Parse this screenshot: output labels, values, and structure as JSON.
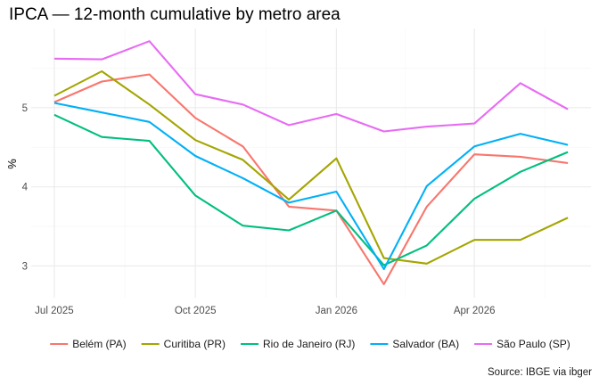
{
  "chart_data": {
    "type": "line",
    "title": "IPCA — 12-month cumulative by metro area",
    "xlabel": "",
    "ylabel": "%",
    "caption": "Source: IBGE via ibger",
    "x": [
      "2025-07-01",
      "2025-08-01",
      "2025-09-01",
      "2025-10-01",
      "2025-11-01",
      "2025-12-01",
      "2026-01-01",
      "2026-02-01",
      "2026-03-01",
      "2026-04-01",
      "2026-05-01",
      "2026-06-01"
    ],
    "x_ticks": [
      {
        "x": "2025-07-01",
        "label": "Jul 2025"
      },
      {
        "x": "2025-10-01",
        "label": "Oct 2025"
      },
      {
        "x": "2026-01-01",
        "label": "Jan 2026"
      },
      {
        "x": "2026-04-01",
        "label": "Apr 2026"
      }
    ],
    "y_ticks": [
      3,
      4,
      5
    ],
    "ylim": [
      2.6,
      6.0
    ],
    "grid": true,
    "legend_position": "bottom",
    "series": [
      {
        "name": "Belém (PA)",
        "color": "#F8766D",
        "values": [
          5.07,
          5.33,
          5.42,
          4.87,
          4.51,
          3.75,
          3.7,
          2.77,
          3.75,
          4.41,
          4.38,
          4.3
        ]
      },
      {
        "name": "Curitiba (PR)",
        "color": "#A3A500",
        "values": [
          5.15,
          5.46,
          5.04,
          4.59,
          4.34,
          3.84,
          4.36,
          3.1,
          3.03,
          3.33,
          3.33,
          3.61
        ]
      },
      {
        "name": "Rio de Janeiro (RJ)",
        "color": "#00BF7D",
        "values": [
          4.91,
          4.63,
          4.58,
          3.89,
          3.51,
          3.45,
          3.7,
          3.01,
          3.26,
          3.85,
          4.19,
          4.44
        ]
      },
      {
        "name": "Salvador (BA)",
        "color": "#00B0F6",
        "values": [
          5.06,
          4.94,
          4.82,
          4.39,
          4.11,
          3.8,
          3.94,
          2.96,
          4.01,
          4.51,
          4.67,
          4.53
        ]
      },
      {
        "name": "São Paulo (SP)",
        "color": "#E76BF3",
        "values": [
          5.62,
          5.61,
          5.84,
          5.17,
          5.04,
          4.78,
          4.92,
          4.7,
          4.76,
          4.8,
          5.31,
          4.98
        ]
      }
    ]
  }
}
